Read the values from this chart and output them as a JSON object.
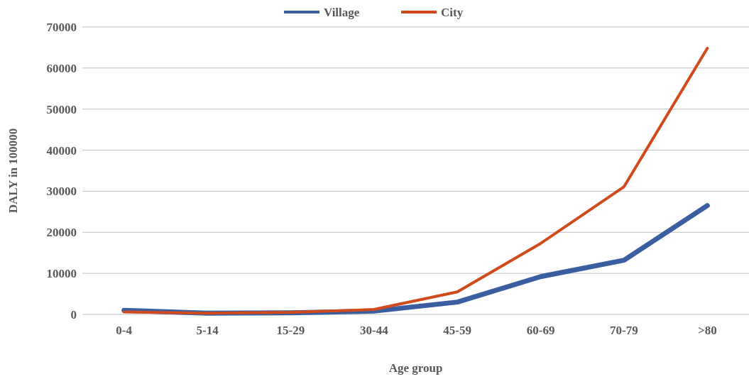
{
  "chart_data": {
    "type": "line",
    "xlabel": "Age group",
    "ylabel": "DALY in 100000",
    "categories": [
      "0-4",
      "5-14",
      "15-29",
      "30-44",
      "45-59",
      "60-69",
      "70-79",
      ">80"
    ],
    "series": [
      {
        "name": "Village",
        "color": "#3a5fa0",
        "values": [
          1000,
          300,
          400,
          800,
          3000,
          9200,
          13200,
          26500
        ]
      },
      {
        "name": "City",
        "color": "#d04a1c",
        "values": [
          600,
          300,
          500,
          1200,
          5500,
          17300,
          31100,
          64800
        ]
      }
    ],
    "ylim": [
      0,
      70000
    ],
    "yticks": [
      0,
      10000,
      20000,
      30000,
      40000,
      50000,
      60000,
      70000
    ],
    "grid": "y",
    "legend": "top",
    "marker": "none",
    "line_style": "solid"
  }
}
